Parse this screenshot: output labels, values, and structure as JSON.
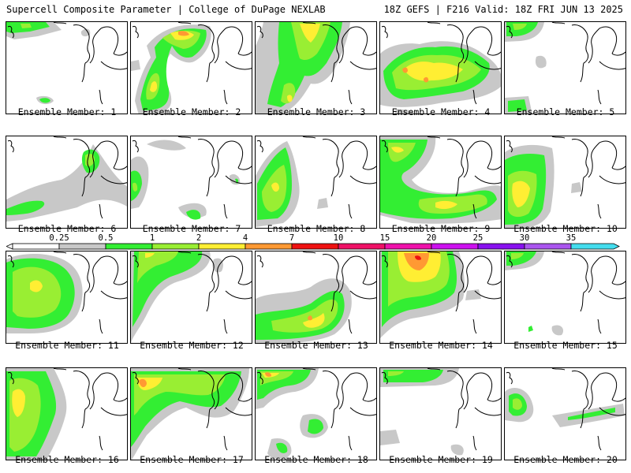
{
  "header": {
    "title": "Supercell Composite Parameter | College of DuPage NEXLAB",
    "run_info": "18Z GEFS | F216 Valid: 18Z FRI JUN 13 2025"
  },
  "colorbar": {
    "labels": [
      "0.25",
      "0.5",
      "1",
      "2",
      "4",
      "7",
      "10",
      "15",
      "20",
      "25",
      "30",
      "35"
    ],
    "colors": [
      "#c8c8c8",
      "#33ee33",
      "#99ee33",
      "#ffee33",
      "#ff9933",
      "#ee1111",
      "#ee1166",
      "#ee11aa",
      "#cc11ee",
      "#8811ee",
      "#aa55ee",
      "#44ddee"
    ]
  },
  "map_colors": {
    "light_gray": "#c8c8c8",
    "green": "#33ee33",
    "lime": "#99ee33",
    "yellow": "#ffee33",
    "orange": "#ff9933",
    "red": "#ee1111"
  },
  "panels": [
    {
      "caption": "Ensemble Member: 1"
    },
    {
      "caption": "Ensemble Member: 2"
    },
    {
      "caption": "Ensemble Member: 3"
    },
    {
      "caption": "Ensemble Member: 4"
    },
    {
      "caption": "Ensemble Member: 5"
    },
    {
      "caption": "Ensemble Member: 6"
    },
    {
      "caption": "Ensemble Member: 7"
    },
    {
      "caption": "Ensemble Member: 8"
    },
    {
      "caption": "Ensemble Member: 9"
    },
    {
      "caption": "Ensemble Member: 10"
    },
    {
      "caption": "Ensemble Member: 11"
    },
    {
      "caption": "Ensemble Member: 12"
    },
    {
      "caption": "Ensemble Member: 13"
    },
    {
      "caption": "Ensemble Member: 14"
    },
    {
      "caption": "Ensemble Member: 15"
    },
    {
      "caption": "Ensemble Member: 16"
    },
    {
      "caption": "Ensemble Member: 17"
    },
    {
      "caption": "Ensemble Member: 18"
    },
    {
      "caption": "Ensemble Member: 19"
    },
    {
      "caption": "Ensemble Member: 20"
    }
  ]
}
